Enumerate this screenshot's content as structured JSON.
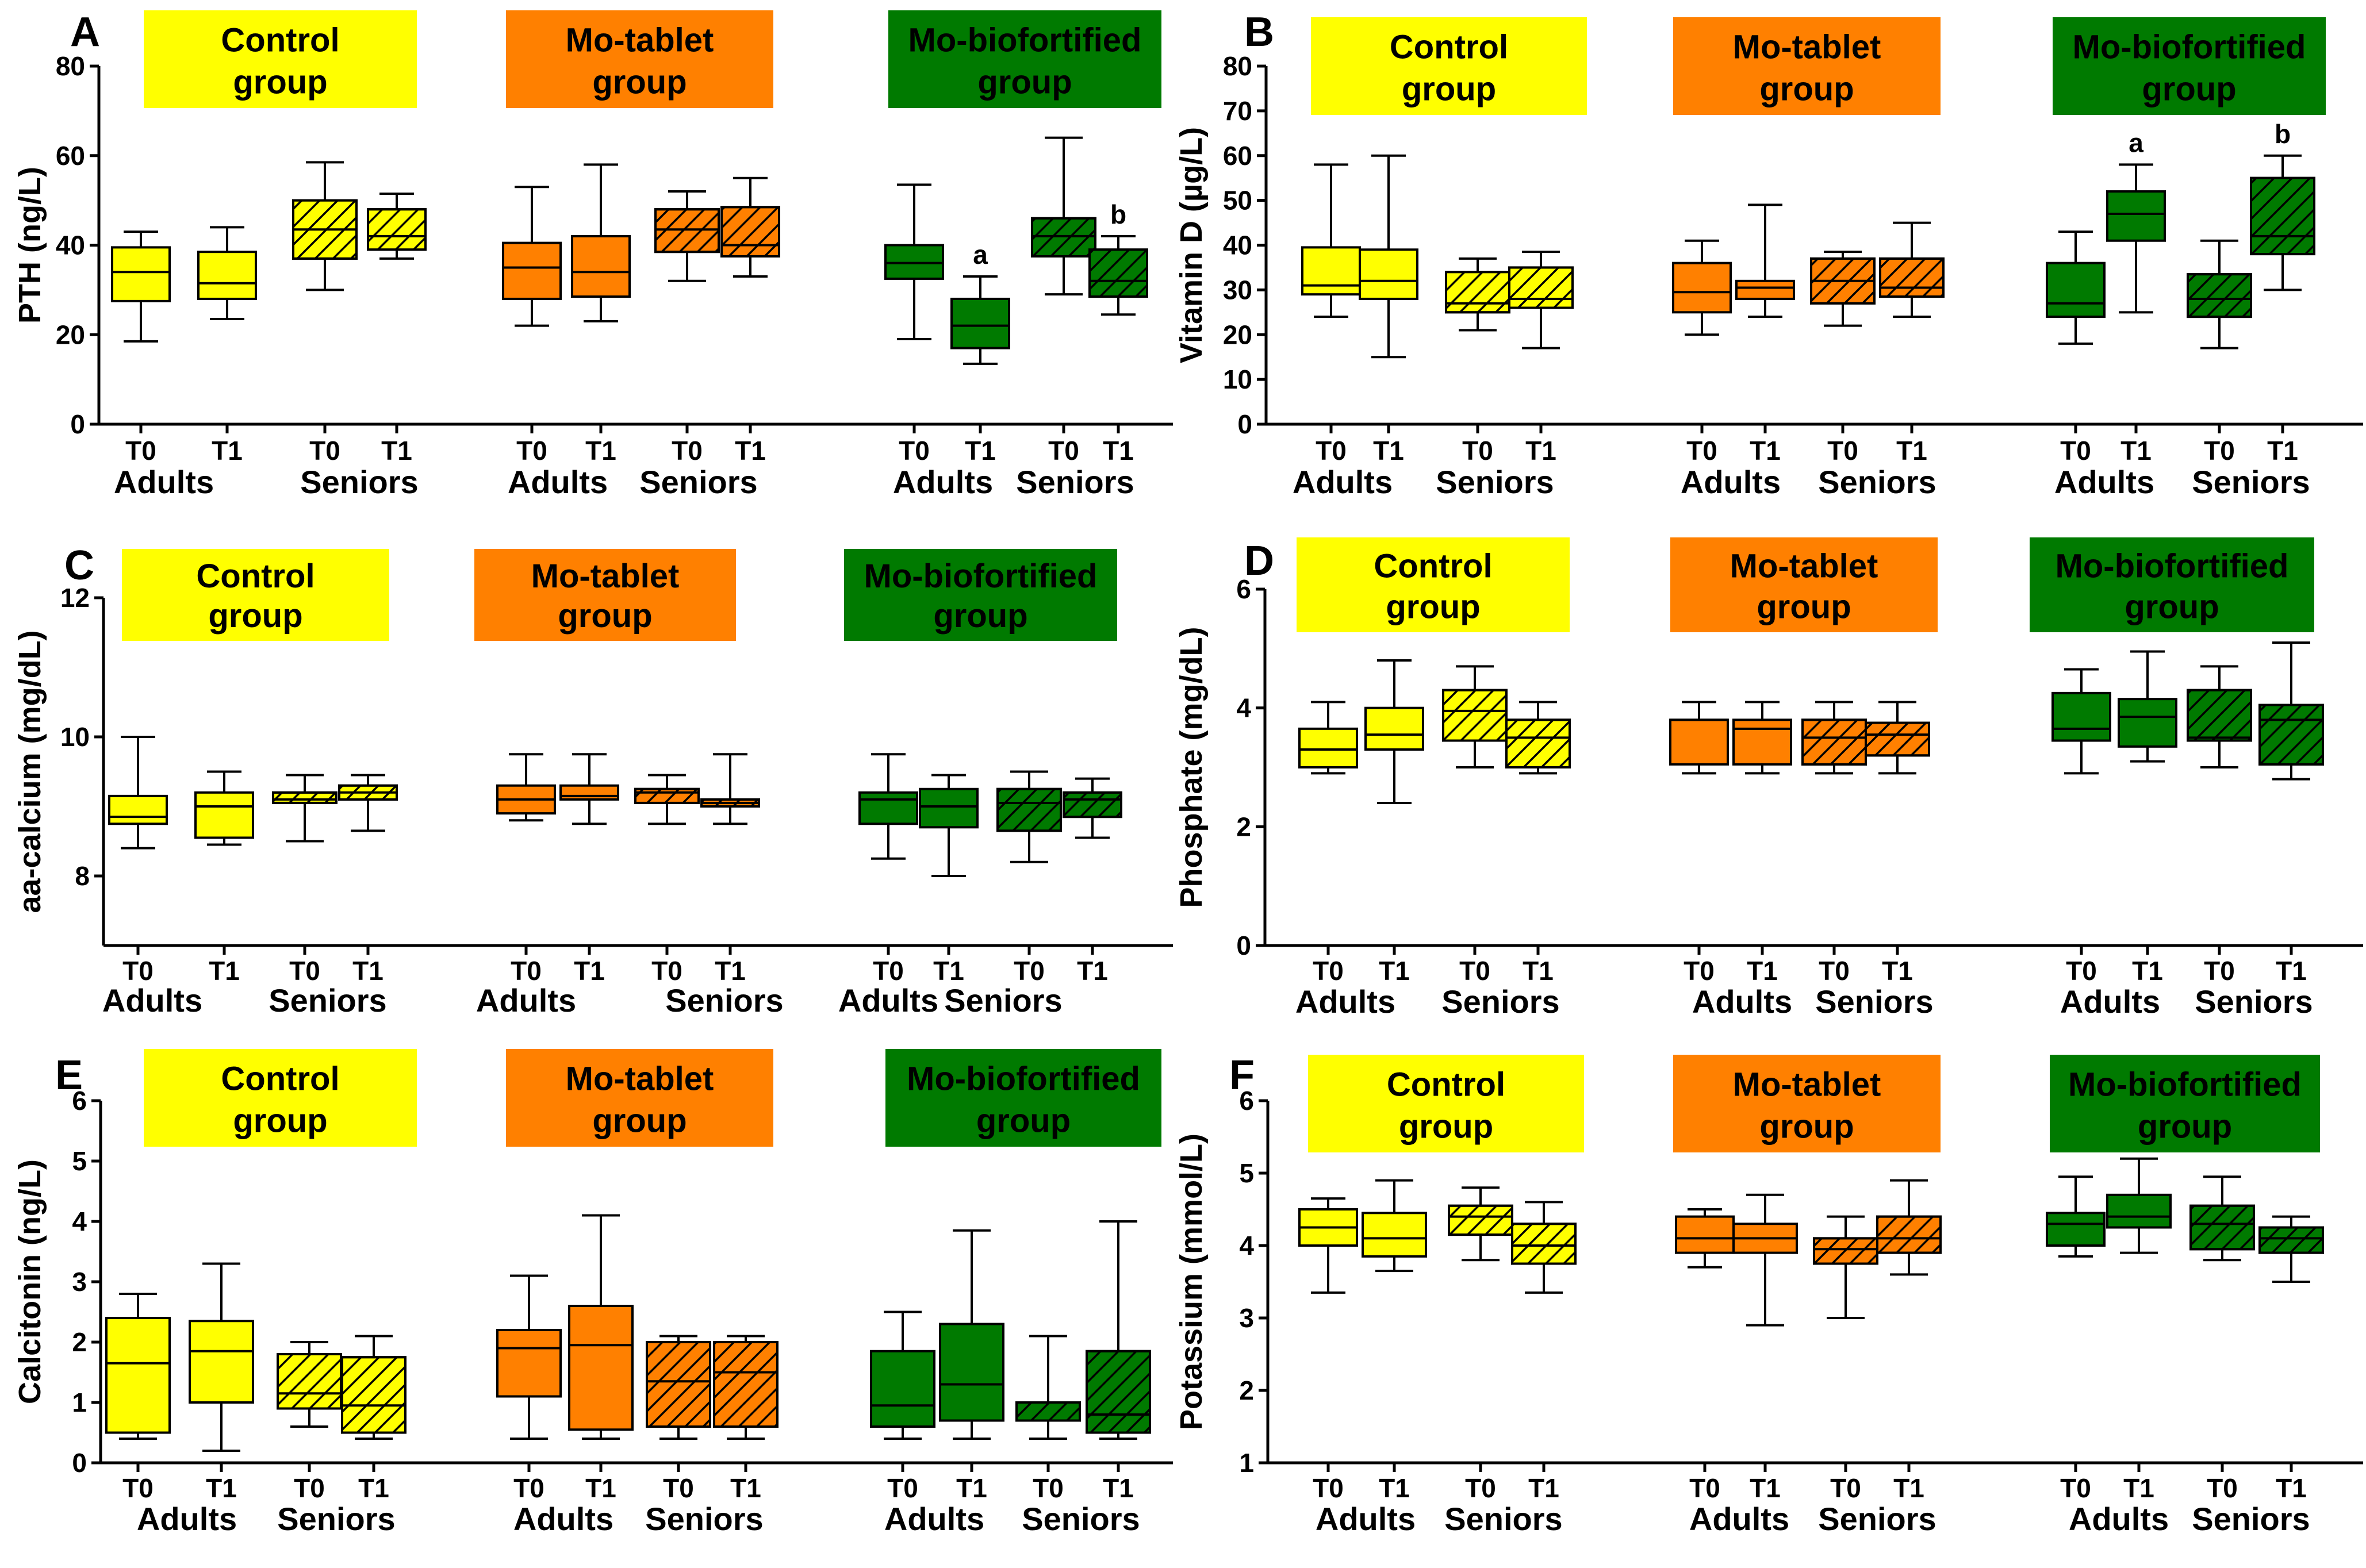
{
  "colors": {
    "control": "#ffff00",
    "tablet": "#ff8000",
    "biofortified": "#007a00"
  },
  "groups": [
    {
      "key": "control",
      "line1": "Control",
      "line2": "group"
    },
    {
      "key": "tablet",
      "line1": "Mo-tablet",
      "line2": "group"
    },
    {
      "key": "biofortified",
      "line1": "Mo-biofortified",
      "line2": "group"
    }
  ],
  "x_ticks": [
    "T0",
    "T1",
    "T0",
    "T1"
  ],
  "cohorts": [
    "Adults",
    "Seniors"
  ],
  "chart_data": [
    {
      "panel": "A",
      "type": "boxplot",
      "ylabel": "PTH (ng/L)",
      "ylim": [
        0,
        80
      ],
      "yticks": [
        0,
        20,
        40,
        60,
        80
      ],
      "boxes": [
        [
          [
            18.5,
            27.5,
            34,
            39.5,
            43
          ],
          [
            23.5,
            28,
            31.5,
            38.5,
            44
          ],
          [
            30,
            37,
            43.5,
            50,
            58.5
          ],
          [
            37,
            39,
            42,
            48,
            51.5
          ]
        ],
        [
          [
            22,
            28,
            35,
            40.5,
            53
          ],
          [
            23,
            28.5,
            34,
            42,
            58
          ],
          [
            32,
            38.5,
            43.5,
            48,
            52
          ],
          [
            33,
            37.5,
            40,
            48.5,
            55
          ]
        ],
        [
          [
            19,
            32.5,
            36,
            40,
            53.5
          ],
          [
            13.5,
            17,
            22,
            28,
            33
          ],
          [
            29,
            37.5,
            42,
            46,
            64
          ],
          [
            24.5,
            28.5,
            32,
            39,
            42
          ]
        ]
      ],
      "annotations": [
        {
          "group": 2,
          "box": 1,
          "text": "a"
        },
        {
          "group": 2,
          "box": 3,
          "text": "b"
        }
      ]
    },
    {
      "panel": "B",
      "type": "boxplot",
      "ylabel": "Vitamin D (µg/L)",
      "ylim": [
        0,
        80
      ],
      "yticks": [
        0,
        10,
        20,
        30,
        40,
        50,
        60,
        70,
        80
      ],
      "boxes": [
        [
          [
            24,
            29,
            31,
            39.5,
            58
          ],
          [
            15,
            28,
            32,
            39,
            60
          ],
          [
            21,
            25,
            27,
            34,
            37
          ],
          [
            17,
            26,
            28,
            35,
            38.5
          ]
        ],
        [
          [
            20,
            25,
            29.5,
            36,
            41
          ],
          [
            24,
            28,
            30.5,
            32,
            49
          ],
          [
            22,
            27,
            32,
            37,
            38.5
          ],
          [
            24,
            28.5,
            30.5,
            37,
            45
          ]
        ],
        [
          [
            18,
            24,
            27,
            36,
            43
          ],
          [
            25,
            41,
            47,
            52,
            58
          ],
          [
            17,
            24,
            28,
            33.5,
            41
          ],
          [
            30,
            38,
            42,
            55,
            60
          ]
        ]
      ],
      "annotations": [
        {
          "group": 2,
          "box": 1,
          "text": "a"
        },
        {
          "group": 2,
          "box": 3,
          "text": "b"
        }
      ]
    },
    {
      "panel": "C",
      "type": "boxplot",
      "ylabel": "aa-calcium (mg/dL)",
      "ylim": [
        7,
        12
      ],
      "yticks": [
        8,
        10,
        12
      ],
      "boxes": [
        [
          [
            8.4,
            8.75,
            8.85,
            9.15,
            10
          ],
          [
            8.45,
            8.55,
            9,
            9.2,
            9.5
          ],
          [
            8.5,
            9.05,
            9.1,
            9.2,
            9.45
          ],
          [
            8.65,
            9.1,
            9.2,
            9.3,
            9.45
          ]
        ],
        [
          [
            8.8,
            8.9,
            9.1,
            9.3,
            9.75
          ],
          [
            8.75,
            9.1,
            9.15,
            9.3,
            9.75
          ],
          [
            8.75,
            9.05,
            9.2,
            9.25,
            9.45
          ],
          [
            8.75,
            9.0,
            9.05,
            9.1,
            9.75
          ]
        ],
        [
          [
            8.25,
            8.75,
            9.1,
            9.2,
            9.75
          ],
          [
            8.0,
            8.7,
            9.0,
            9.25,
            9.45
          ],
          [
            8.2,
            8.65,
            9.05,
            9.25,
            9.5
          ],
          [
            8.55,
            8.85,
            9.1,
            9.2,
            9.4
          ]
        ]
      ],
      "annotations": []
    },
    {
      "panel": "D",
      "type": "boxplot",
      "ylabel": "Phosphate (mg/dL)",
      "ylim": [
        0,
        6
      ],
      "yticks": [
        0,
        2,
        4,
        6
      ],
      "boxes": [
        [
          [
            2.9,
            3.0,
            3.3,
            3.65,
            4.1
          ],
          [
            2.4,
            3.3,
            3.55,
            4.0,
            4.8
          ],
          [
            3.0,
            3.45,
            3.95,
            4.3,
            4.7
          ],
          [
            2.9,
            3.0,
            3.5,
            3.8,
            4.1
          ]
        ],
        [
          [
            2.9,
            3.05,
            3.8,
            3.8,
            4.1
          ],
          [
            2.9,
            3.05,
            3.65,
            3.8,
            4.1
          ],
          [
            2.9,
            3.05,
            3.5,
            3.8,
            4.1
          ],
          [
            2.9,
            3.2,
            3.55,
            3.75,
            4.1
          ]
        ],
        [
          [
            2.9,
            3.45,
            3.65,
            4.25,
            4.65
          ],
          [
            3.1,
            3.35,
            3.85,
            4.15,
            4.95
          ],
          [
            3.0,
            3.45,
            3.5,
            4.3,
            4.7
          ],
          [
            2.8,
            3.05,
            3.8,
            4.05,
            5.1
          ]
        ]
      ],
      "annotations": []
    },
    {
      "panel": "E",
      "type": "boxplot",
      "ylabel": "Calcitonin (ng/L)",
      "ylim": [
        0,
        6
      ],
      "yticks": [
        0,
        1,
        2,
        3,
        4,
        5,
        6
      ],
      "boxes": [
        [
          [
            0.4,
            0.5,
            1.65,
            2.4,
            2.8
          ],
          [
            0.2,
            1.0,
            1.85,
            2.35,
            3.3
          ],
          [
            0.6,
            0.9,
            1.15,
            1.8,
            2.0
          ],
          [
            0.4,
            0.5,
            0.95,
            1.75,
            2.1
          ]
        ],
        [
          [
            0.4,
            1.1,
            1.9,
            2.2,
            3.1
          ],
          [
            0.4,
            0.55,
            1.95,
            2.6,
            4.1
          ],
          [
            0.4,
            0.6,
            1.35,
            2.0,
            2.1
          ],
          [
            0.4,
            0.6,
            1.5,
            2.0,
            2.1
          ]
        ],
        [
          [
            0.4,
            0.6,
            0.95,
            1.85,
            2.5
          ],
          [
            0.4,
            0.7,
            1.3,
            2.3,
            3.85
          ],
          [
            0.4,
            0.7,
            1.0,
            1.0,
            2.1
          ],
          [
            0.4,
            0.5,
            0.8,
            1.85,
            4.0
          ]
        ]
      ],
      "annotations": []
    },
    {
      "panel": "F",
      "type": "boxplot",
      "ylabel": "Potassium (mmol/L)",
      "ylim": [
        1,
        6
      ],
      "yticks": [
        1,
        2,
        3,
        4,
        5,
        6
      ],
      "boxes": [
        [
          [
            3.35,
            4.0,
            4.25,
            4.5,
            4.65
          ],
          [
            3.65,
            3.85,
            4.1,
            4.45,
            4.9
          ],
          [
            3.8,
            4.15,
            4.4,
            4.55,
            4.8
          ],
          [
            3.35,
            3.75,
            4.0,
            4.3,
            4.6
          ]
        ],
        [
          [
            3.7,
            3.9,
            4.1,
            4.4,
            4.5
          ],
          [
            2.9,
            3.9,
            4.1,
            4.3,
            4.7
          ],
          [
            3.0,
            3.75,
            3.95,
            4.1,
            4.4
          ],
          [
            3.6,
            3.9,
            4.1,
            4.4,
            4.9
          ]
        ],
        [
          [
            3.85,
            4.0,
            4.3,
            4.45,
            4.95
          ],
          [
            3.9,
            4.25,
            4.4,
            4.7,
            5.2
          ],
          [
            3.8,
            3.95,
            4.3,
            4.55,
            4.95
          ],
          [
            3.5,
            3.9,
            4.1,
            4.25,
            4.4
          ]
        ]
      ],
      "annotations": []
    }
  ]
}
